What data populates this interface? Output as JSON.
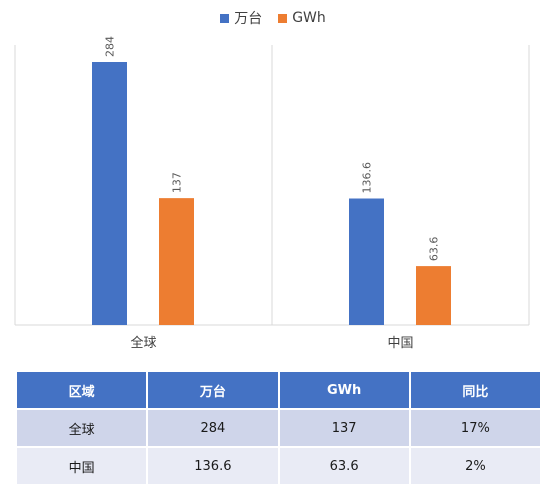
{
  "colors": {
    "series1": "#4472c4",
    "series2": "#ed7d31",
    "axis": "#d9d9d9",
    "label": "#595959"
  },
  "chart_data": {
    "type": "bar",
    "categories": [
      "全球",
      "中国"
    ],
    "series": [
      {
        "name": "万台",
        "values": [
          284,
          136.6
        ]
      },
      {
        "name": "GWh",
        "values": [
          137,
          63.6
        ]
      }
    ],
    "data_labels": [
      [
        "284",
        "136.6"
      ],
      [
        "137",
        "63.6"
      ]
    ],
    "ylim": [
      0,
      300
    ],
    "legend_position": "top",
    "grid": false
  },
  "table": {
    "headers": [
      "区域",
      "万台",
      "GWh",
      "同比"
    ],
    "rows": [
      [
        "全球",
        "284",
        "137",
        "17%"
      ],
      [
        "中国",
        "136.6",
        "63.6",
        "2%"
      ]
    ]
  }
}
